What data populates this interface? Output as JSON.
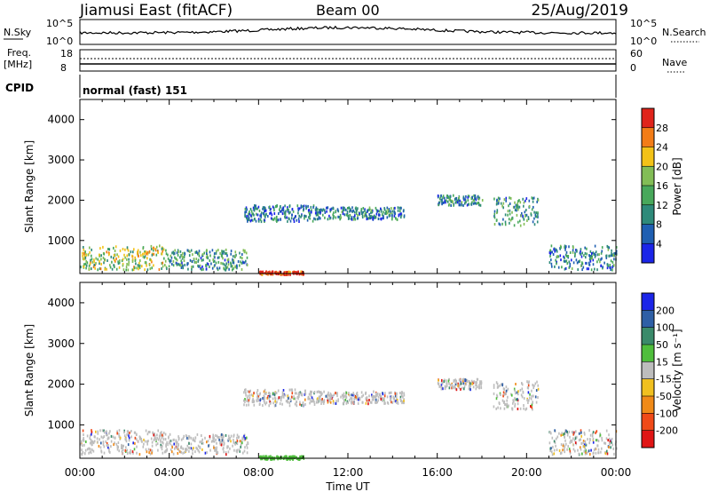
{
  "header": {
    "station": "Jiamusi East (fitACF)",
    "beam": "Beam 00",
    "date": "25/Aug/2019"
  },
  "strip": {
    "nsky_label": "N.Sky",
    "nsearch_label": "N.Search",
    "left_top": "10^5",
    "left_bottom": "10^0",
    "right_top": "10^5",
    "right_bottom": "10^0",
    "freq_label": "Freq.",
    "freq_unit": "[MHz]",
    "freq_top": "18",
    "freq_bottom": "8",
    "nave_label": "Nave",
    "nave_top": "60",
    "nave_bottom": "0",
    "cpid_label": "CPID",
    "cpid_value": "normal (fast) 151"
  },
  "chart_data": [
    {
      "type": "heatmap",
      "name": "power",
      "ylabel": "Slant Range [km]",
      "ylim": [
        180,
        4500
      ],
      "yticks": [
        1000,
        2000,
        3000,
        4000
      ],
      "xlim": [
        0,
        24
      ],
      "colorbar": {
        "label": "Power [dB]",
        "ticks": [
          "4",
          "8",
          "12",
          "16",
          "20",
          "24",
          "28"
        ],
        "colors": [
          "#1b25e8",
          "#1f5fb2",
          "#2e8a7a",
          "#48a85b",
          "#82bd56",
          "#f2c218",
          "#f27c17",
          "#e0241b"
        ]
      },
      "echo_bands": [
        {
          "t0": 0.0,
          "t1": 3.8,
          "r0": 300,
          "r1": 900,
          "level": 0.55
        },
        {
          "t0": 3.8,
          "t1": 7.5,
          "r0": 300,
          "r1": 800,
          "level": 0.35
        },
        {
          "t0": 7.3,
          "t1": 10.5,
          "r0": 1500,
          "r1": 1900,
          "level": 0.25
        },
        {
          "t0": 10.5,
          "t1": 14.5,
          "r0": 1550,
          "r1": 1850,
          "level": 0.3
        },
        {
          "t0": 16.0,
          "t1": 18.0,
          "r0": 1900,
          "r1": 2150,
          "level": 0.3
        },
        {
          "t0": 18.5,
          "t1": 20.5,
          "r0": 1400,
          "r1": 2100,
          "level": 0.35
        },
        {
          "t0": 21.0,
          "t1": 24.0,
          "r0": 300,
          "r1": 900,
          "level": 0.3
        },
        {
          "t0": 8.0,
          "t1": 10.0,
          "r0": 180,
          "r1": 260,
          "level": 0.95
        }
      ]
    },
    {
      "type": "heatmap",
      "name": "velocity",
      "ylabel": "Slant Range [km]",
      "ylim": [
        180,
        4500
      ],
      "yticks": [
        1000,
        2000,
        3000,
        4000
      ],
      "xlim": [
        0,
        24
      ],
      "xticks": [
        "00:00",
        "04:00",
        "08:00",
        "12:00",
        "16:00",
        "20:00",
        "00:00"
      ],
      "xlabel": "Time UT",
      "colorbar": {
        "label": "Velocity [m s⁻¹]",
        "ticks": [
          "200",
          "100",
          "50",
          "15",
          "-15",
          "-50",
          "-100",
          "-200"
        ],
        "colors": [
          "#1b25e8",
          "#2e5fa6",
          "#3a8a6a",
          "#4fbe3c",
          "#bdbdbd",
          "#f0c020",
          "#f08a18",
          "#f04a18",
          "#e01515"
        ]
      },
      "echo_bands": [
        {
          "t0": 0.0,
          "t1": 3.8,
          "r0": 300,
          "r1": 900
        },
        {
          "t0": 3.8,
          "t1": 7.5,
          "r0": 300,
          "r1": 800
        },
        {
          "t0": 7.3,
          "t1": 10.5,
          "r0": 1500,
          "r1": 1900
        },
        {
          "t0": 10.5,
          "t1": 14.5,
          "r0": 1550,
          "r1": 1850
        },
        {
          "t0": 16.0,
          "t1": 18.0,
          "r0": 1900,
          "r1": 2150
        },
        {
          "t0": 18.5,
          "t1": 20.5,
          "r0": 1400,
          "r1": 2100
        },
        {
          "t0": 21.0,
          "t1": 24.0,
          "r0": 300,
          "r1": 900
        },
        {
          "t0": 8.0,
          "t1": 10.0,
          "r0": 180,
          "r1": 260
        }
      ]
    }
  ]
}
